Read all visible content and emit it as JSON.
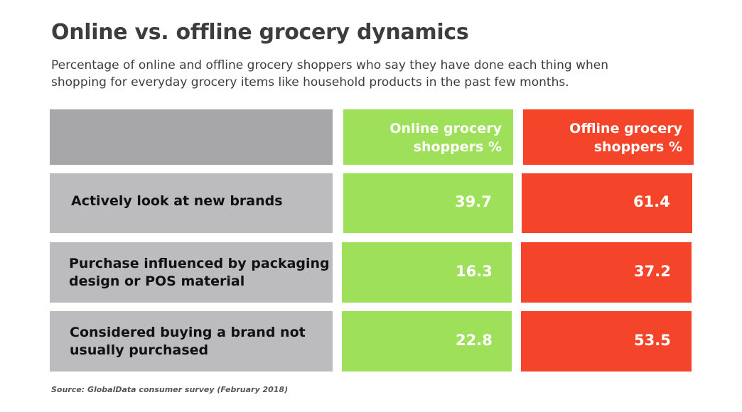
{
  "title": "Online vs. offline grocery dynamics",
  "subtitle": "Percentage of online and offline grocery shoppers who say they have done each thing when shopping for everyday grocery items like household products in the past few months.",
  "source": "Source: GlobalData consumer survey (February 2018)",
  "colors": {
    "label_column": "#bcbcbf",
    "header_label_column": "#a7a7aa",
    "online": "#9ee05a",
    "offline": "#f4452a"
  },
  "chart_data": {
    "type": "table",
    "columns": [
      "Online grocery shoppers %",
      "Offline grocery shoppers %"
    ],
    "rows": [
      {
        "label": "Actively look at new brands",
        "values": [
          "39.7",
          "61.4"
        ]
      },
      {
        "label": "Purchase influenced by packaging design or POS material",
        "values": [
          "16.3",
          "37.2"
        ]
      },
      {
        "label": "Considered buying a brand not usually purchased",
        "values": [
          "22.8",
          "53.5"
        ]
      }
    ]
  }
}
